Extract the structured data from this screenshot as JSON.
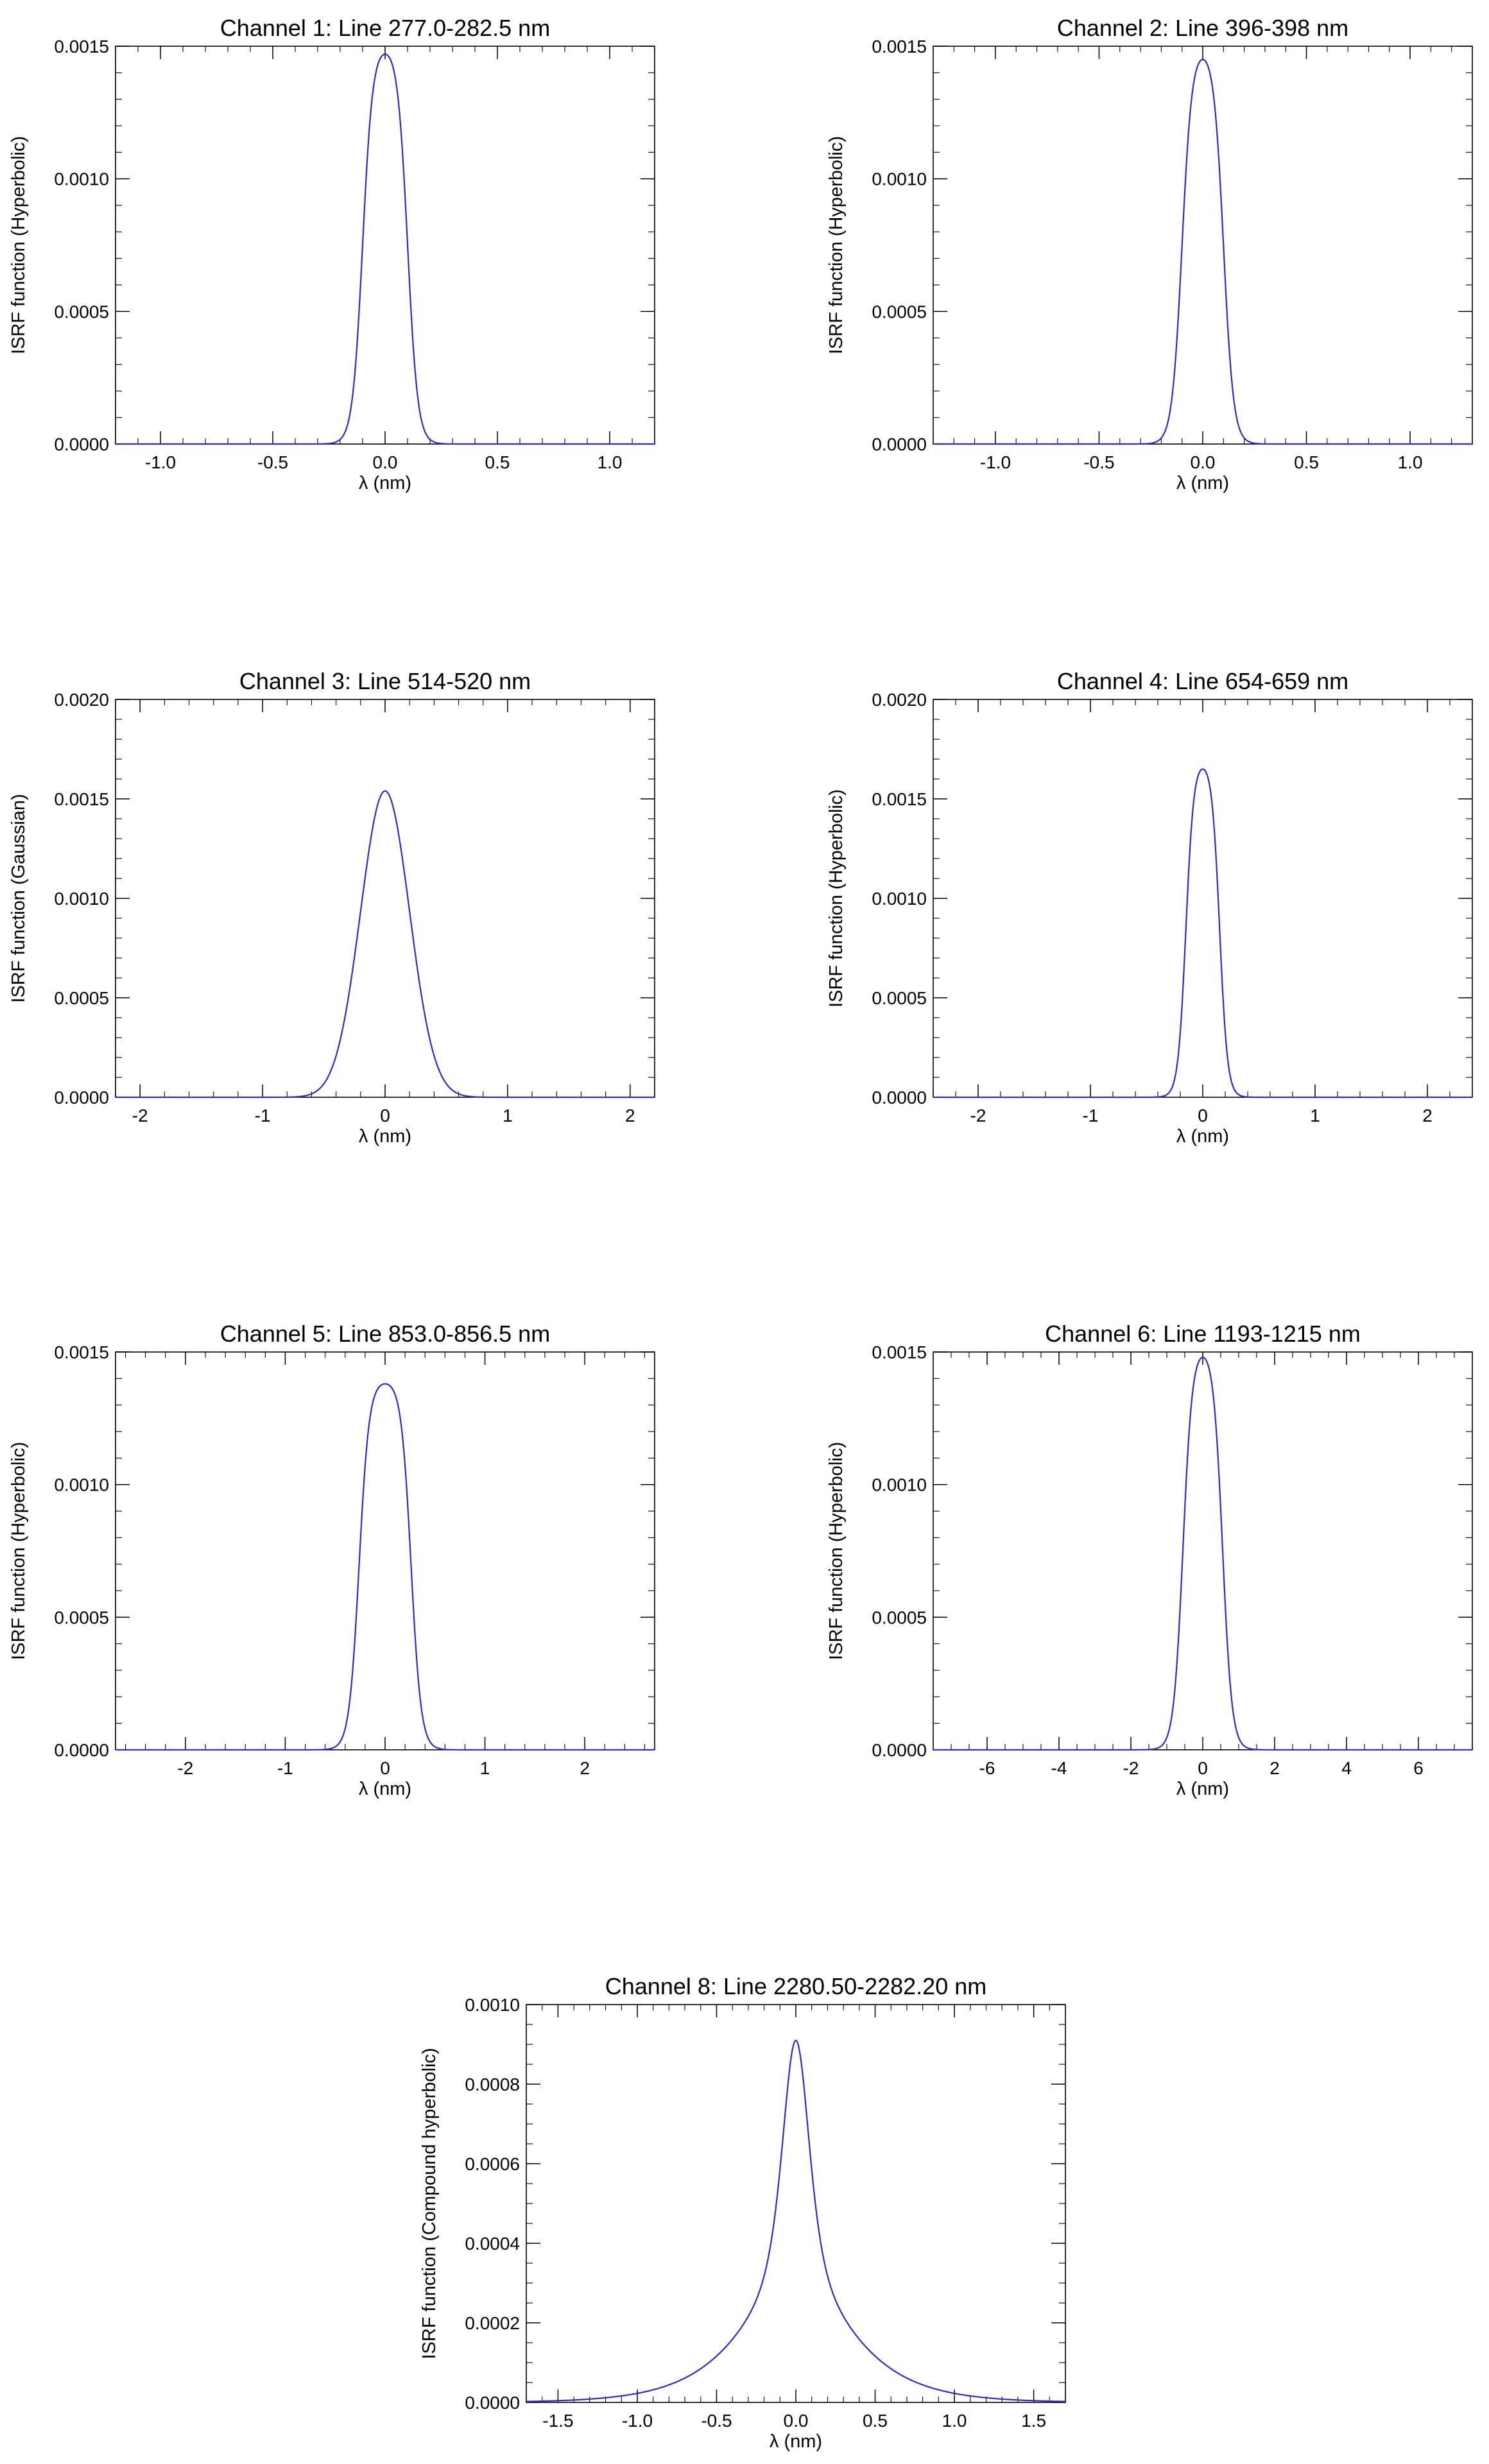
{
  "chart_data": [
    {
      "type": "line",
      "title": "Channel 1: Line 277.0-282.5 nm",
      "xlabel": "λ (nm)",
      "ylabel": "ISRF function (Hyperbolic)",
      "xlim": [
        -1.2,
        1.2
      ],
      "ylim": [
        0,
        0.0015
      ],
      "xticks": [
        -1.0,
        -0.5,
        0.0,
        0.5,
        1.0
      ],
      "xtick_labels": [
        "-1.0",
        "-0.5",
        "0.0",
        "0.5",
        "1.0"
      ],
      "xminor_step": 0.1,
      "yticks": [
        0.0,
        0.0005,
        0.001,
        0.0015
      ],
      "ytick_labels": [
        "0.0000",
        "0.0005",
        "0.0010",
        "0.0015"
      ],
      "yminor_step": 0.0001,
      "grid": false,
      "series": [
        {
          "peak": 0.00147,
          "center": 0.0,
          "shape": "hyperbolic",
          "half_width": 0.1,
          "width": 0.045
        }
      ]
    },
    {
      "type": "line",
      "title": "Channel 2: Line 396-398 nm",
      "xlabel": "λ (nm)",
      "ylabel": "ISRF function (Hyperbolic)",
      "xlim": [
        -1.3,
        1.3
      ],
      "ylim": [
        0,
        0.0015
      ],
      "xticks": [
        -1.0,
        -0.5,
        0.0,
        0.5,
        1.0
      ],
      "xtick_labels": [
        "-1.0",
        "-0.5",
        "0.0",
        "0.5",
        "1.0"
      ],
      "xminor_step": 0.1,
      "yticks": [
        0.0,
        0.0005,
        0.001,
        0.0015
      ],
      "ytick_labels": [
        "0.0000",
        "0.0005",
        "0.0010",
        "0.0015"
      ],
      "yminor_step": 0.0001,
      "grid": false,
      "series": [
        {
          "peak": 0.00145,
          "center": 0.0,
          "shape": "hyperbolic",
          "half_width": 0.1,
          "width": 0.048
        }
      ]
    },
    {
      "type": "line",
      "title": "Channel 3: Line 514-520 nm",
      "xlabel": "λ (nm)",
      "ylabel": "ISRF function (Gaussian)",
      "xlim": [
        -2.2,
        2.2
      ],
      "ylim": [
        0,
        0.002
      ],
      "xticks": [
        -2,
        -1,
        0,
        1,
        2
      ],
      "xtick_labels": [
        "-2",
        "-1",
        "0",
        "1",
        "2"
      ],
      "xminor_step": 0.2,
      "yticks": [
        0.0,
        0.0005,
        0.001,
        0.0015,
        0.002
      ],
      "ytick_labels": [
        "0.0000",
        "0.0005",
        "0.0010",
        "0.0015",
        "0.0020"
      ],
      "yminor_step": 0.0001,
      "grid": false,
      "series": [
        {
          "peak": 0.00154,
          "center": 0.0,
          "shape": "gaussian",
          "sigma": 0.2
        }
      ]
    },
    {
      "type": "line",
      "title": "Channel 4: Line 654-659 nm",
      "xlabel": "λ (nm)",
      "ylabel": "ISRF function (Hyperbolic)",
      "xlim": [
        -2.4,
        2.4
      ],
      "ylim": [
        0,
        0.002
      ],
      "xticks": [
        -2,
        -1,
        0,
        1,
        2
      ],
      "xtick_labels": [
        "-2",
        "-1",
        "0",
        "1",
        "2"
      ],
      "xminor_step": 0.2,
      "yticks": [
        0.0,
        0.0005,
        0.001,
        0.0015,
        0.002
      ],
      "ytick_labels": [
        "0.0000",
        "0.0005",
        "0.0010",
        "0.0015",
        "0.0020"
      ],
      "yminor_step": 0.0001,
      "grid": false,
      "series": [
        {
          "peak": 0.00165,
          "center": 0.0,
          "shape": "hyperbolic",
          "half_width": 0.15,
          "width": 0.07
        }
      ]
    },
    {
      "type": "line",
      "title": "Channel 5: Line 853.0-856.5 nm",
      "xlabel": "λ (nm)",
      "ylabel": "ISRF function (Hyperbolic)",
      "xlim": [
        -2.7,
        2.7
      ],
      "ylim": [
        0,
        0.0015
      ],
      "xticks": [
        -2,
        -1,
        0,
        1,
        2
      ],
      "xtick_labels": [
        "-2",
        "-1",
        "0",
        "1",
        "2"
      ],
      "xminor_step": 0.2,
      "yticks": [
        0.0,
        0.0005,
        0.001,
        0.0015
      ],
      "ytick_labels": [
        "0.0000",
        "0.0005",
        "0.0010",
        "0.0015"
      ],
      "yminor_step": 0.0001,
      "grid": false,
      "series": [
        {
          "peak": 0.00138,
          "center": 0.0,
          "shape": "hyperbolic",
          "half_width": 0.26,
          "width": 0.1
        }
      ]
    },
    {
      "type": "line",
      "title": "Channel 6: Line 1193-1215 nm",
      "xlabel": "λ (nm)",
      "ylabel": "ISRF function (Hyperbolic)",
      "xlim": [
        -7.5,
        7.5
      ],
      "ylim": [
        0,
        0.0015
      ],
      "xticks": [
        -6,
        -4,
        -2,
        0,
        2,
        4,
        6
      ],
      "xtick_labels": [
        "-6",
        "-4",
        "-2",
        "0",
        "2",
        "4",
        "6"
      ],
      "xminor_step": 0.5,
      "yticks": [
        0.0,
        0.0005,
        0.001,
        0.0015
      ],
      "ytick_labels": [
        "0.0000",
        "0.0005",
        "0.0010",
        "0.0015"
      ],
      "yminor_step": 0.0001,
      "grid": false,
      "series": [
        {
          "peak": 0.00148,
          "center": 0.0,
          "shape": "hyperbolic",
          "half_width": 0.55,
          "width": 0.26
        }
      ]
    },
    {
      "type": "line",
      "title": "Channel 8: Line 2280.50-2282.20 nm",
      "xlabel": "λ (nm)",
      "ylabel": "ISRF function (Compound hyperbolic)",
      "xlim": [
        -1.7,
        1.7
      ],
      "ylim": [
        0,
        0.001
      ],
      "xticks": [
        -1.5,
        -1.0,
        -0.5,
        0.0,
        0.5,
        1.0,
        1.5
      ],
      "xtick_labels": [
        "-1.5",
        "-1.0",
        "-0.5",
        "0.0",
        "0.5",
        "1.0",
        "1.5"
      ],
      "xminor_step": 0.1,
      "yticks": [
        0.0,
        0.0002,
        0.0004,
        0.0006,
        0.0008,
        0.001
      ],
      "ytick_labels": [
        "0.0000",
        "0.0002",
        "0.0004",
        "0.0006",
        "0.0008",
        "0.0010"
      ],
      "yminor_step": 5e-05,
      "grid": false,
      "series": [
        {
          "peak": 0.00091,
          "center": 0.0,
          "shape": "compound_hyperbolic",
          "core_width": 0.11,
          "wing_width": 0.3,
          "wing_fraction": 0.35
        }
      ]
    }
  ],
  "colors": {
    "curve": "#2b2bd6",
    "axes": "#000000",
    "background": "#ffffff"
  }
}
